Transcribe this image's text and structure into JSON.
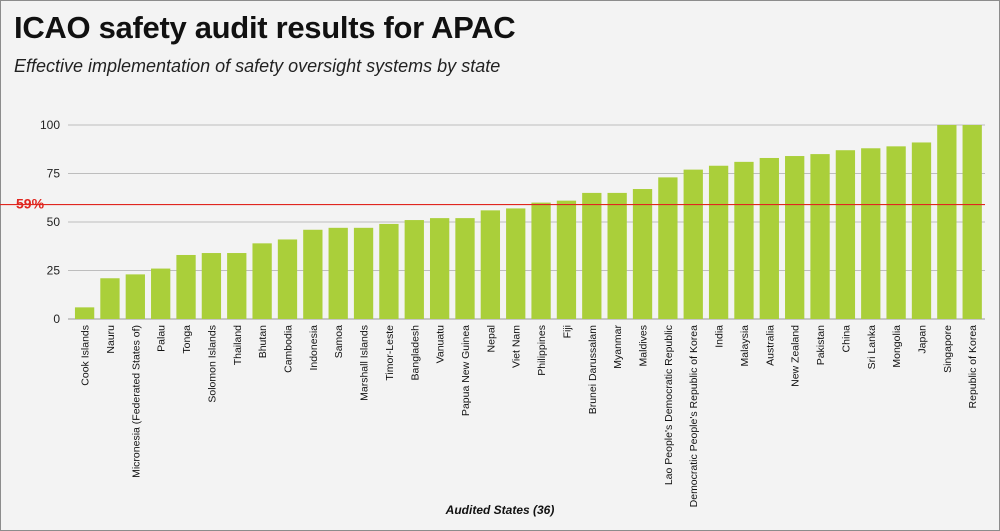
{
  "title": "ICAO safety audit results for APAC",
  "subtitle": "Effective implementation of safety oversight systems by state",
  "colors": {
    "bar": "#aacf3a",
    "reference_line": "#e0261f",
    "grid": "#bdbdbd",
    "background": "#f3f3f3"
  },
  "chart_data": {
    "type": "bar",
    "title": "ICAO safety audit results for APAC",
    "subtitle": "Effective implementation of safety oversight systems by state",
    "xlabel": "Audited States (36)",
    "ylabel": "",
    "ylim": [
      0,
      100
    ],
    "yticks": [
      0,
      25,
      50,
      75,
      100
    ],
    "grid": true,
    "reference_line": {
      "value": 59,
      "label": "59%"
    },
    "categories": [
      "Cook Islands",
      "Nauru",
      "Micronesia (Federated States of)",
      "Palau",
      "Tonga",
      "Solomon Islands",
      "Thailand",
      "Bhutan",
      "Cambodia",
      "Indonesia",
      "Samoa",
      "Marshall Islands",
      "Timor-Leste",
      "Bangladesh",
      "Vanuatu",
      "Papua New Guinea",
      "Nepal",
      "Viet Nam",
      "Philippines",
      "Fiji",
      "Brunei Darussalam",
      "Myanmar",
      "Maldives",
      "Lao People's Democratic Republic",
      "Democratic People's Republic of Korea",
      "India",
      "Malaysia",
      "Australia",
      "New Zealand",
      "Pakistan",
      "China",
      "Sri Lanka",
      "Mongolia",
      "Japan",
      "Singapore",
      "Republic of Korea"
    ],
    "values": [
      6,
      21,
      23,
      26,
      33,
      34,
      34,
      39,
      41,
      46,
      47,
      47,
      49,
      51,
      52,
      52,
      56,
      57,
      60,
      61,
      65,
      65,
      67,
      73,
      77,
      79,
      81,
      83,
      84,
      85,
      87,
      88,
      89,
      91,
      100,
      100
    ]
  }
}
